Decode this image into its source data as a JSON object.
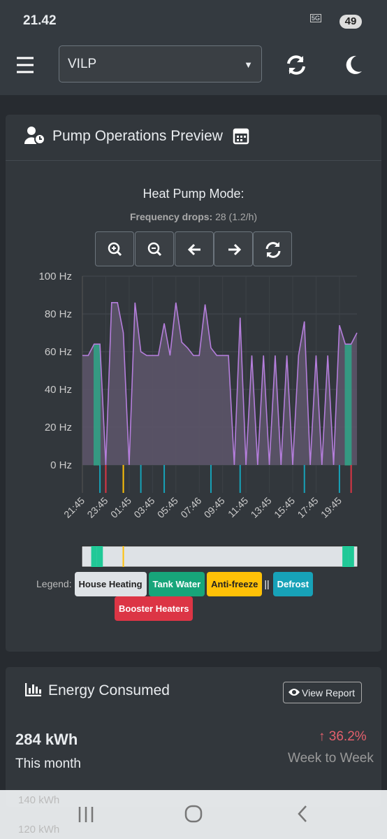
{
  "status_bar": {
    "time": "21.42",
    "network": "5G",
    "battery": "49"
  },
  "header": {
    "select": "VILP"
  },
  "pump_card": {
    "title": "Pump Operations Preview",
    "chart_heading": "Heat Pump Mode:",
    "drops_label": "Frequency drops:",
    "drops_value": "28 (1.2/h)"
  },
  "chart_data": {
    "type": "line",
    "x": [
      "21:45",
      "22:15",
      "22:45",
      "23:15",
      "23:45",
      "00:15",
      "00:45",
      "01:15",
      "01:45",
      "02:15",
      "02:45",
      "03:15",
      "03:45",
      "04:15",
      "04:45",
      "05:15",
      "05:45",
      "06:15",
      "06:45",
      "07:15",
      "07:46",
      "08:15",
      "08:45",
      "09:15",
      "09:45",
      "10:15",
      "10:45",
      "11:15",
      "11:45",
      "12:15",
      "12:45",
      "13:15",
      "13:45",
      "14:15",
      "14:45",
      "15:15",
      "15:45",
      "16:15",
      "16:45",
      "17:15",
      "17:45",
      "18:15",
      "18:45",
      "19:15",
      "19:45",
      "20:15",
      "20:45",
      "21:15"
    ],
    "series": [
      {
        "color": "#b57edc",
        "values": [
          58,
          58,
          64,
          64,
          0,
          86,
          86,
          70,
          0,
          86,
          60,
          58,
          58,
          58,
          75,
          58,
          86,
          65,
          62,
          58,
          58,
          85,
          62,
          58,
          58,
          58,
          0,
          78,
          0,
          58,
          0,
          58,
          0,
          58,
          0,
          58,
          0,
          58,
          76,
          0,
          58,
          0,
          58,
          0,
          74,
          64,
          64,
          70
        ]
      }
    ],
    "mode": [
      "House Heating",
      "House Heating",
      "Tank Water",
      "Tank Water",
      "House Heating",
      "House Heating",
      "House Heating",
      "House Heating",
      "House Heating",
      "House Heating",
      "House Heating",
      "House Heating",
      "House Heating",
      "House Heating",
      "House Heating",
      "House Heating",
      "House Heating",
      "House Heating",
      "House Heating",
      "House Heating",
      "House Heating",
      "House Heating",
      "House Heating",
      "House Heating",
      "House Heating",
      "House Heating",
      "House Heating",
      "House Heating",
      "House Heating",
      "House Heating",
      "House Heating",
      "House Heating",
      "House Heating",
      "House Heating",
      "House Heating",
      "House Heating",
      "House Heating",
      "House Heating",
      "House Heating",
      "House Heating",
      "House Heating",
      "House Heating",
      "House Heating",
      "House Heating",
      "House Heating",
      "Tank Water",
      "Tank Water",
      "House Heating"
    ],
    "events": [
      {
        "x": "23:15",
        "type": "Defrost"
      },
      {
        "x": "23:45",
        "type": "Booster Heaters"
      },
      {
        "x": "01:15",
        "type": "Anti-freeze"
      },
      {
        "x": "02:45",
        "type": "Defrost"
      },
      {
        "x": "04:45",
        "type": "Defrost"
      },
      {
        "x": "08:45",
        "type": "Defrost"
      },
      {
        "x": "11:15",
        "type": "Defrost"
      },
      {
        "x": "16:45",
        "type": "Defrost"
      },
      {
        "x": "19:45",
        "type": "Defrost"
      },
      {
        "x": "20:45",
        "type": "Booster Heaters"
      }
    ],
    "xticks": [
      "21:45",
      "23:45",
      "01:45",
      "03:45",
      "05:45",
      "07:46",
      "09:45",
      "11:45",
      "13:45",
      "15:45",
      "17:45",
      "19:45"
    ],
    "ylim": [
      0,
      100
    ],
    "yticks": [
      {
        "value": 0,
        "label": "0 Hz"
      },
      {
        "value": 20,
        "label": "20 Hz"
      },
      {
        "value": 40,
        "label": "40 Hz"
      },
      {
        "value": 60,
        "label": "60 Hz"
      },
      {
        "value": 80,
        "label": "80 Hz"
      },
      {
        "value": 100,
        "label": "100 Hz"
      }
    ],
    "grid": true
  },
  "legend": {
    "label": "Legend:",
    "separator": "||",
    "items": [
      {
        "name": "House Heating",
        "color": "#dee2e6"
      },
      {
        "name": "Tank Water",
        "color": "#20c997"
      },
      {
        "name": "Anti-freeze",
        "color": "#ffc107"
      },
      {
        "name": "Defrost",
        "color": "#17a2b8"
      },
      {
        "name": "Booster Heaters",
        "color": "#dc3545"
      }
    ]
  },
  "energy_card": {
    "title": "Energy Consumed",
    "button": "View Report",
    "value": "284 kWh",
    "period": "This month",
    "change": "36.2%",
    "change_period": "Week to Week",
    "axis_labels": [
      "140 kWh",
      "120 kWh"
    ]
  }
}
